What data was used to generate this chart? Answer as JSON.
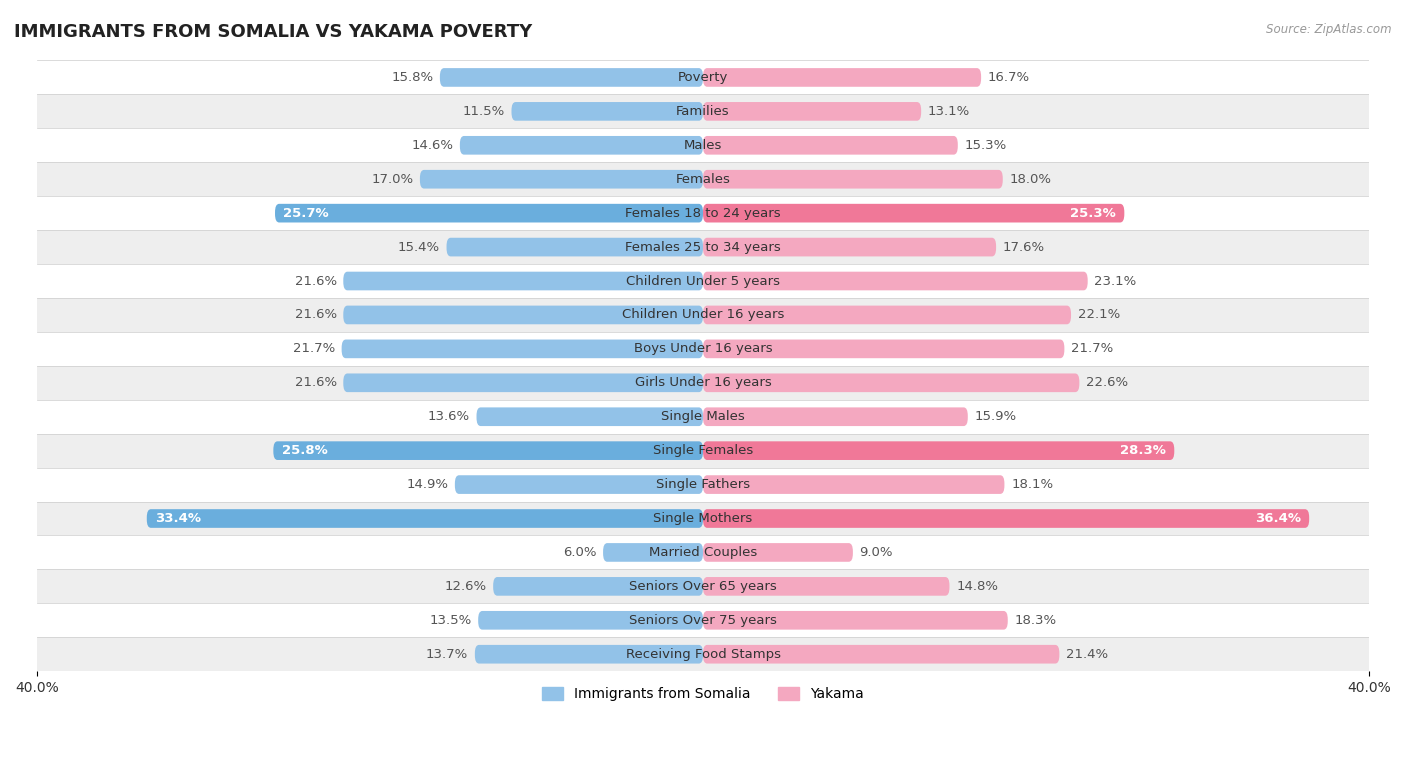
{
  "title": "IMMIGRANTS FROM SOMALIA VS YAKAMA POVERTY",
  "source": "Source: ZipAtlas.com",
  "categories": [
    "Poverty",
    "Families",
    "Males",
    "Females",
    "Females 18 to 24 years",
    "Females 25 to 34 years",
    "Children Under 5 years",
    "Children Under 16 years",
    "Boys Under 16 years",
    "Girls Under 16 years",
    "Single Males",
    "Single Females",
    "Single Fathers",
    "Single Mothers",
    "Married Couples",
    "Seniors Over 65 years",
    "Seniors Over 75 years",
    "Receiving Food Stamps"
  ],
  "somalia_values": [
    15.8,
    11.5,
    14.6,
    17.0,
    25.7,
    15.4,
    21.6,
    21.6,
    21.7,
    21.6,
    13.6,
    25.8,
    14.9,
    33.4,
    6.0,
    12.6,
    13.5,
    13.7
  ],
  "yakama_values": [
    16.7,
    13.1,
    15.3,
    18.0,
    25.3,
    17.6,
    23.1,
    22.1,
    21.7,
    22.6,
    15.9,
    28.3,
    18.1,
    36.4,
    9.0,
    14.8,
    18.3,
    21.4
  ],
  "somalia_color": "#92C2E8",
  "yakama_color": "#F4A8C0",
  "somalia_highlight_color": "#6AAEDD",
  "yakama_highlight_color": "#F07898",
  "somalia_highlight_indices": [
    4,
    11,
    13
  ],
  "yakama_highlight_indices": [
    4,
    11,
    13
  ],
  "row_colors": [
    "#FFFFFF",
    "#EEEEEE"
  ],
  "label_fontsize": 9.5,
  "title_fontsize": 13,
  "legend_somalia": "Immigrants from Somalia",
  "legend_yakama": "Yakama",
  "background_color": "#FFFFFF"
}
